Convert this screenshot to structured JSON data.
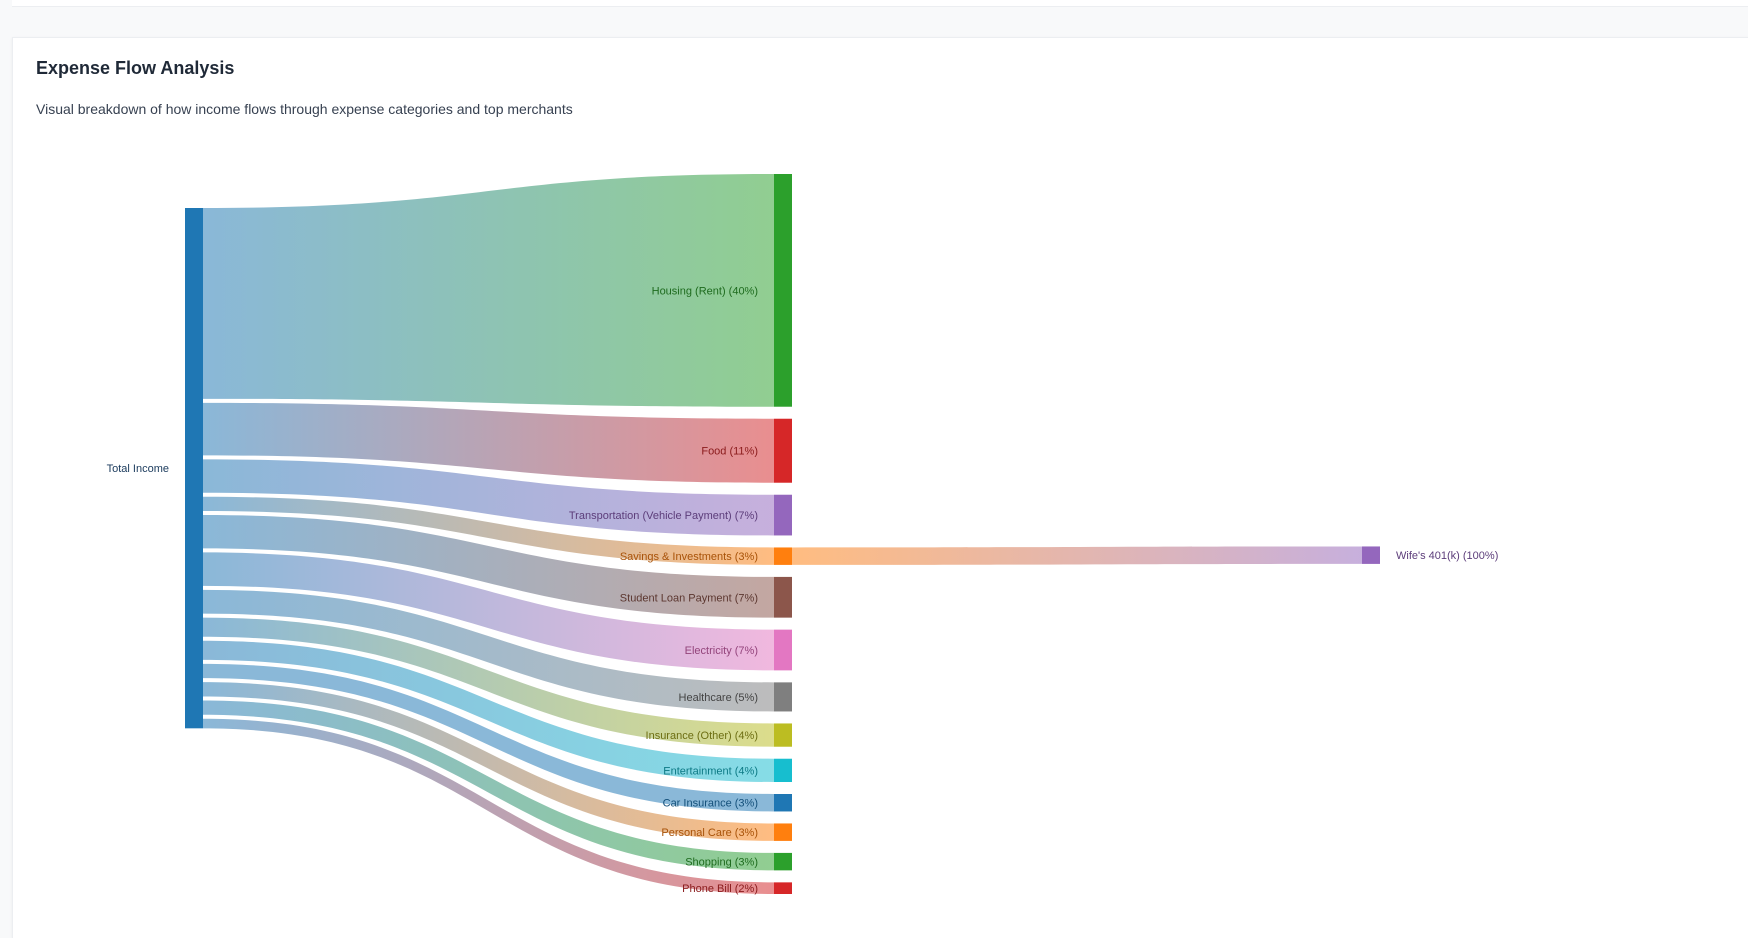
{
  "card": {
    "title": "Expense Flow Analysis",
    "subtitle": "Visual breakdown of how income flows through expense categories and top merchants"
  },
  "chart_data": {
    "type": "sankey",
    "title": "",
    "source": {
      "name": "Total Income",
      "color": "#1f77b4",
      "text_color": "#1a3a5c"
    },
    "units": "percent of total income",
    "flows": [
      {
        "name": "Housing (Rent)",
        "label": "Housing (Rent) (40%)",
        "value": 40,
        "color": "#2ca02c",
        "text_color": "#1e6b1e"
      },
      {
        "name": "Food",
        "label": "Food (11%)",
        "value": 11,
        "color": "#d62728",
        "text_color": "#8a1a1b"
      },
      {
        "name": "Transportation (Vehicle Payment)",
        "label": "Transportation (Vehicle Payment) (7%)",
        "value": 7,
        "color": "#9467bd",
        "text_color": "#5c3d7a"
      },
      {
        "name": "Savings & Investments",
        "label": "Savings & Investments (3%)",
        "value": 3,
        "color": "#ff7f0e",
        "text_color": "#a85208"
      },
      {
        "name": "Student Loan Payment",
        "label": "Student Loan Payment (7%)",
        "value": 7,
        "color": "#8c564b",
        "text_color": "#5c3730"
      },
      {
        "name": "Electricity",
        "label": "Electricity (7%)",
        "value": 7,
        "color": "#e377c2",
        "text_color": "#93447b"
      },
      {
        "name": "Healthcare",
        "label": "Healthcare (5%)",
        "value": 5,
        "color": "#7f7f7f",
        "text_color": "#444444"
      },
      {
        "name": "Insurance (Other)",
        "label": "Insurance (Other) (4%)",
        "value": 4,
        "color": "#bcbd22",
        "text_color": "#6d6e12"
      },
      {
        "name": "Entertainment",
        "label": "Entertainment (4%)",
        "value": 4,
        "color": "#17becf",
        "text_color": "#0d7a85"
      },
      {
        "name": "Car Insurance",
        "label": "Car Insurance (3%)",
        "value": 3,
        "color": "#1f77b4",
        "text_color": "#14507a"
      },
      {
        "name": "Personal Care",
        "label": "Personal Care (3%)",
        "value": 3,
        "color": "#ff7f0e",
        "text_color": "#a85208"
      },
      {
        "name": "Shopping",
        "label": "Shopping (3%)",
        "value": 3,
        "color": "#2ca02c",
        "text_color": "#1e6b1e"
      },
      {
        "name": "Phone Bill",
        "label": "Phone Bill (2%)",
        "value": 2,
        "color": "#d62728",
        "text_color": "#8a1a1b"
      }
    ],
    "secondary_flows": [
      {
        "from": "Savings & Investments",
        "name": "Wife's 401(k)",
        "label": "Wife's 401(k) (100%)",
        "value": 100,
        "color": "#9467bd",
        "text_color": "#5c3d7a"
      }
    ]
  }
}
